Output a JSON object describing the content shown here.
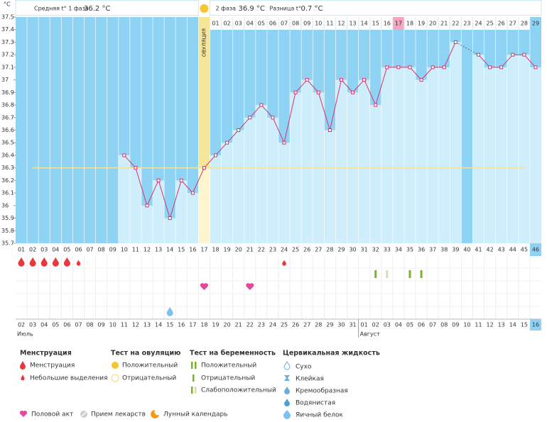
{
  "chart_data": {
    "type": "line",
    "y_unit": "°С",
    "categories": [
      "01",
      "02",
      "03",
      "04",
      "05",
      "06",
      "07",
      "08",
      "09",
      "10",
      "11",
      "12",
      "13",
      "14",
      "15",
      "16",
      "17",
      "18",
      "19",
      "20",
      "21",
      "22",
      "23",
      "24",
      "25",
      "26",
      "27",
      "28",
      "29",
      "30",
      "31",
      "32",
      "33",
      "34",
      "35",
      "36",
      "37",
      "38",
      "39",
      "40",
      "41",
      "42",
      "43",
      "44",
      "45",
      "46"
    ],
    "values": [
      null,
      null,
      null,
      null,
      null,
      null,
      null,
      null,
      null,
      36.4,
      36.3,
      36.0,
      36.2,
      35.9,
      36.2,
      36.1,
      36.3,
      36.4,
      36.5,
      36.6,
      36.7,
      36.8,
      36.7,
      36.5,
      36.9,
      37.0,
      36.9,
      36.6,
      37.0,
      36.9,
      37.0,
      36.8,
      37.1,
      37.1,
      37.1,
      37.0,
      37.1,
      37.1,
      37.3,
      null,
      37.2,
      37.1,
      37.1,
      37.2,
      37.2,
      37.1
    ],
    "color": "#d6336c",
    "coverline": 36.3,
    "ylim": [
      35.7,
      37.5
    ],
    "yticks": [
      35.7,
      35.8,
      35.9,
      36,
      36.1,
      36.2,
      36.3,
      36.4,
      36.5,
      36.6,
      36.7,
      36.8,
      36.9,
      37,
      37.1,
      37.2,
      37.3,
      37.4,
      37.5
    ],
    "ovulation_day": "17",
    "ovulation_label": "ОВУЛЯЦИЯ",
    "highlight_day": "34",
    "today": "46",
    "phase2_days": [
      "01",
      "02",
      "03",
      "04",
      "05",
      "06",
      "07",
      "08",
      "09",
      "10",
      "11",
      "12",
      "13",
      "14",
      "15",
      "16",
      "17",
      "18",
      "19",
      "20",
      "21",
      "22",
      "23",
      "24",
      "25",
      "26",
      "27",
      "28",
      "29"
    ]
  },
  "header": {
    "phase1_label": "Средняя t° 1 фаза",
    "phase1_value": "36.2 °С",
    "phase2_label": "2 фаза",
    "phase2_value": "36.9 °С",
    "diff_label": "Разница t°",
    "diff_value": "0.7 °С"
  },
  "events": {
    "menstruation": [
      "01",
      "02",
      "03",
      "04",
      "05"
    ],
    "spotting": [
      "06",
      "24"
    ],
    "pregnancy_positive": [
      "32",
      "35",
      "36"
    ],
    "pregnancy_weak": [
      "33"
    ],
    "sex": [
      "17",
      "21"
    ],
    "egg_white": [
      "14"
    ]
  },
  "dates": [
    "02",
    "03",
    "04",
    "05",
    "06",
    "07",
    "08",
    "09",
    "10",
    "11",
    "12",
    "13",
    "14",
    "15",
    "16",
    "17",
    "18",
    "19",
    "20",
    "21",
    "22",
    "23",
    "24",
    "25",
    "26",
    "27",
    "28",
    "29",
    "30",
    "31",
    "01",
    "02",
    "03",
    "04",
    "05",
    "06",
    "07",
    "08",
    "09",
    "10",
    "11",
    "12",
    "13",
    "14",
    "15",
    "16"
  ],
  "red_dates": [
    3,
    4,
    10,
    11,
    17,
    18,
    24,
    25,
    31,
    32,
    38,
    39
  ],
  "months": [
    {
      "label": "Июль",
      "start": 0
    },
    {
      "label": "Август",
      "start": 30
    }
  ],
  "legend": {
    "menstruation": {
      "title": "Менструация",
      "items": [
        "Менструация",
        "Небольшие выделения"
      ]
    },
    "ovulation_test": {
      "title": "Тест на овуляцию",
      "items": [
        "Положительный",
        "Отрицательный"
      ]
    },
    "pregnancy_test": {
      "title": "Тест на беременность",
      "items": [
        "Положительный",
        "Отрицательный",
        "Слабоположительный"
      ]
    },
    "cervical": {
      "title": "Цервикальная жидкость",
      "items": [
        "Сухо",
        "Клейкая",
        "Кремообразная",
        "Водянистая",
        "Яичный белок"
      ]
    },
    "other": [
      "Половой акт",
      "Прием лекарств",
      "Лунный календарь"
    ]
  }
}
